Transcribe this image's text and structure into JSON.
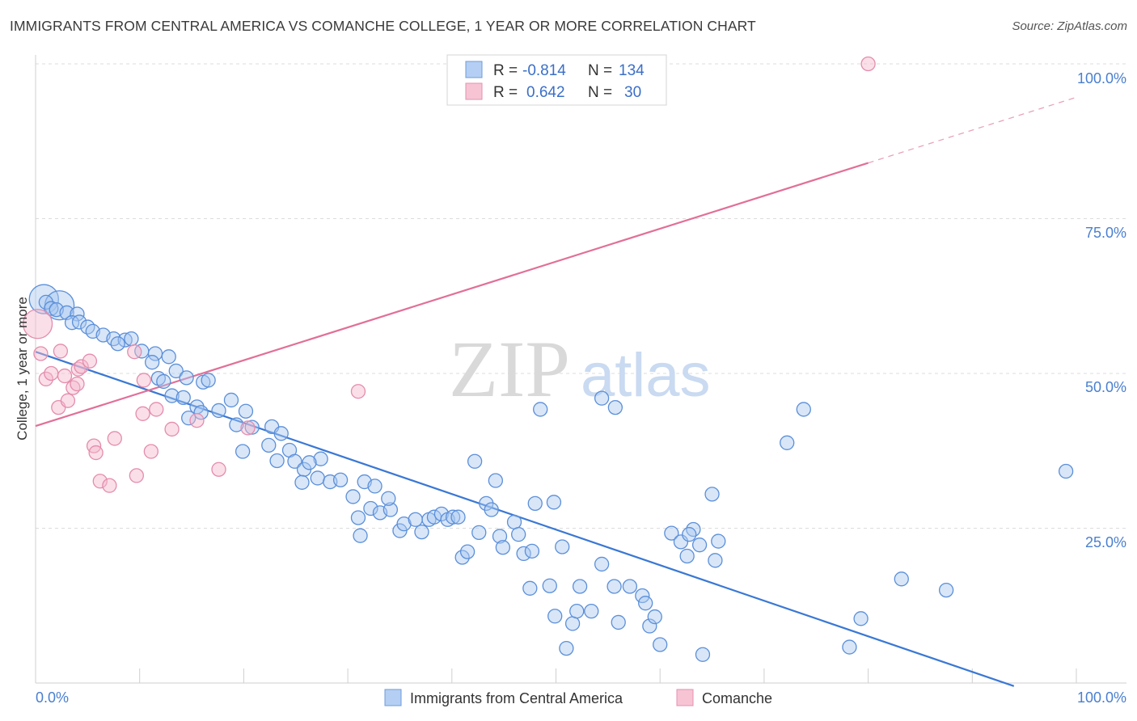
{
  "chart_data": {
    "type": "scatter",
    "title": "IMMIGRANTS FROM CENTRAL AMERICA VS COMANCHE COLLEGE, 1 YEAR OR MORE CORRELATION CHART",
    "source": "Source: ZipAtlas.com",
    "ylabel": "College, 1 year or more",
    "xlim": [
      0,
      100
    ],
    "ylim": [
      0,
      100
    ],
    "x_tick_labels": [
      "0.0%",
      "100.0%"
    ],
    "y_ticks": [
      25,
      50,
      75,
      100
    ],
    "y_tick_labels": [
      "25.0%",
      "50.0%",
      "75.0%",
      "100.0%"
    ],
    "watermark": {
      "part1": "ZIP",
      "part2": "atlas"
    },
    "colors": {
      "blue": "#4a86d8",
      "pink": "#e26f98",
      "blue_fill": "#a9c7ef",
      "pink_fill": "#f5b8cc"
    },
    "legend": {
      "rows": [
        {
          "r_label": "R =",
          "r_value": "-0.814",
          "n_label": "N =",
          "n_value": "134"
        },
        {
          "r_label": "R =",
          "r_value": "0.642",
          "n_label": "N =",
          "n_value": "30"
        }
      ]
    },
    "series": [
      {
        "name": "Immigrants from Central America",
        "color": "#4a86d8",
        "trend": {
          "x0": 0,
          "y0": 53.5,
          "x1": 94,
          "y1": -0.5
        },
        "points": [
          [
            1,
            61.5
          ],
          [
            1.5,
            60.5
          ],
          [
            2,
            60.3
          ],
          [
            3,
            59.8
          ],
          [
            4,
            59.6
          ],
          [
            3.5,
            58.2
          ],
          [
            4.2,
            58.3
          ],
          [
            5,
            57.5
          ],
          [
            5.5,
            56.8
          ],
          [
            6.5,
            56.2
          ],
          [
            7.5,
            55.6
          ],
          [
            8.6,
            55.4
          ],
          [
            9.2,
            55.6
          ],
          [
            7.9,
            54.8
          ],
          [
            10.2,
            53.6
          ],
          [
            11.5,
            53.2
          ],
          [
            12.8,
            52.7
          ],
          [
            11.2,
            51.8
          ],
          [
            13.5,
            50.4
          ],
          [
            14.5,
            49.3
          ],
          [
            11.8,
            49.2
          ],
          [
            12.3,
            48.7
          ],
          [
            16.1,
            48.6
          ],
          [
            16.6,
            48.9
          ],
          [
            13.1,
            46.4
          ],
          [
            14.2,
            46.1
          ],
          [
            15.5,
            44.6
          ],
          [
            15.9,
            43.7
          ],
          [
            17.6,
            44.0
          ],
          [
            18.8,
            45.7
          ],
          [
            20.2,
            43.9
          ],
          [
            14.7,
            42.8
          ],
          [
            19.3,
            41.7
          ],
          [
            20.8,
            41.3
          ],
          [
            22.7,
            41.4
          ],
          [
            23.6,
            40.3
          ],
          [
            19.9,
            37.4
          ],
          [
            22.4,
            38.4
          ],
          [
            24.4,
            37.6
          ],
          [
            23.2,
            35.9
          ],
          [
            24.9,
            35.8
          ],
          [
            25.8,
            34.5
          ],
          [
            27.4,
            36.2
          ],
          [
            26.3,
            35.6
          ],
          [
            27.1,
            33.1
          ],
          [
            28.3,
            32.5
          ],
          [
            25.6,
            32.4
          ],
          [
            29.3,
            32.8
          ],
          [
            30.5,
            30.1
          ],
          [
            31.6,
            32.5
          ],
          [
            32.6,
            31.8
          ],
          [
            31.0,
            26.7
          ],
          [
            32.2,
            28.2
          ],
          [
            33.1,
            27.5
          ],
          [
            34.1,
            28.0
          ],
          [
            33.9,
            29.8
          ],
          [
            31.2,
            23.8
          ],
          [
            35.0,
            24.6
          ],
          [
            35.4,
            25.7
          ],
          [
            36.5,
            26.4
          ],
          [
            37.1,
            24.4
          ],
          [
            37.8,
            26.4
          ],
          [
            38.3,
            26.8
          ],
          [
            39.0,
            27.3
          ],
          [
            39.6,
            26.4
          ],
          [
            40.1,
            26.8
          ],
          [
            40.6,
            26.8
          ],
          [
            42.2,
            35.8
          ],
          [
            41.0,
            20.3
          ],
          [
            41.5,
            21.2
          ],
          [
            42.6,
            24.3
          ],
          [
            43.3,
            29.0
          ],
          [
            43.8,
            28.0
          ],
          [
            44.2,
            32.7
          ],
          [
            44.6,
            23.7
          ],
          [
            44.9,
            21.9
          ],
          [
            46.0,
            26.0
          ],
          [
            46.4,
            24.0
          ],
          [
            46.9,
            20.9
          ],
          [
            47.7,
            21.3
          ],
          [
            47.5,
            15.3
          ],
          [
            48.0,
            29.0
          ],
          [
            48.5,
            44.2
          ],
          [
            49.8,
            29.2
          ],
          [
            49.4,
            15.7
          ],
          [
            49.9,
            10.8
          ],
          [
            50.6,
            22.0
          ],
          [
            51.0,
            5.6
          ],
          [
            51.6,
            9.6
          ],
          [
            52.0,
            11.6
          ],
          [
            52.3,
            15.6
          ],
          [
            53.4,
            11.6
          ],
          [
            54.4,
            46.0
          ],
          [
            54.4,
            19.2
          ],
          [
            55.7,
            44.5
          ],
          [
            55.6,
            15.6
          ],
          [
            56.0,
            9.8
          ],
          [
            57.1,
            15.6
          ],
          [
            58.3,
            14.1
          ],
          [
            58.6,
            12.9
          ],
          [
            59.0,
            9.2
          ],
          [
            59.5,
            10.7
          ],
          [
            60.0,
            6.2
          ],
          [
            61.1,
            24.2
          ],
          [
            62.0,
            22.8
          ],
          [
            62.6,
            20.5
          ],
          [
            63.2,
            24.8
          ],
          [
            62.8,
            24.0
          ],
          [
            63.8,
            22.3
          ],
          [
            65.0,
            30.5
          ],
          [
            65.3,
            19.8
          ],
          [
            65.6,
            22.9
          ],
          [
            72.2,
            38.8
          ],
          [
            73.8,
            44.2
          ],
          [
            78.2,
            5.8
          ],
          [
            79.3,
            10.4
          ],
          [
            83.2,
            16.8
          ],
          [
            87.5,
            15.0
          ],
          [
            99.0,
            34.2
          ],
          [
            64.1,
            4.6
          ]
        ],
        "large_points": [
          [
            0.8,
            62.0
          ],
          [
            2.3,
            61.0
          ]
        ]
      },
      {
        "name": "Comanche",
        "color": "#e26f98",
        "trend": {
          "x0": 0,
          "y0": 41.5,
          "x1": 80,
          "y1": 84.0,
          "dash_x1": 100,
          "dash_y1": 94.6
        },
        "points": [
          [
            0.5,
            53.2
          ],
          [
            1.0,
            49.1
          ],
          [
            1.5,
            50.0
          ],
          [
            2.2,
            44.5
          ],
          [
            2.4,
            53.6
          ],
          [
            2.8,
            49.6
          ],
          [
            3.1,
            45.6
          ],
          [
            3.6,
            47.7
          ],
          [
            4.0,
            48.3
          ],
          [
            4.1,
            50.7
          ],
          [
            4.4,
            51.1
          ],
          [
            5.2,
            52.0
          ],
          [
            5.6,
            38.3
          ],
          [
            5.8,
            37.2
          ],
          [
            6.2,
            32.6
          ],
          [
            7.1,
            31.9
          ],
          [
            7.6,
            39.5
          ],
          [
            9.5,
            53.5
          ],
          [
            9.7,
            33.5
          ],
          [
            10.4,
            48.9
          ],
          [
            10.3,
            43.5
          ],
          [
            11.1,
            37.4
          ],
          [
            11.6,
            44.2
          ],
          [
            13.1,
            41.0
          ],
          [
            15.5,
            42.4
          ],
          [
            17.6,
            34.5
          ],
          [
            20.4,
            41.2
          ],
          [
            31.0,
            47.1
          ],
          [
            80.0,
            100.0
          ]
        ],
        "large_points": [
          [
            0.2,
            58.0
          ]
        ]
      }
    ]
  }
}
